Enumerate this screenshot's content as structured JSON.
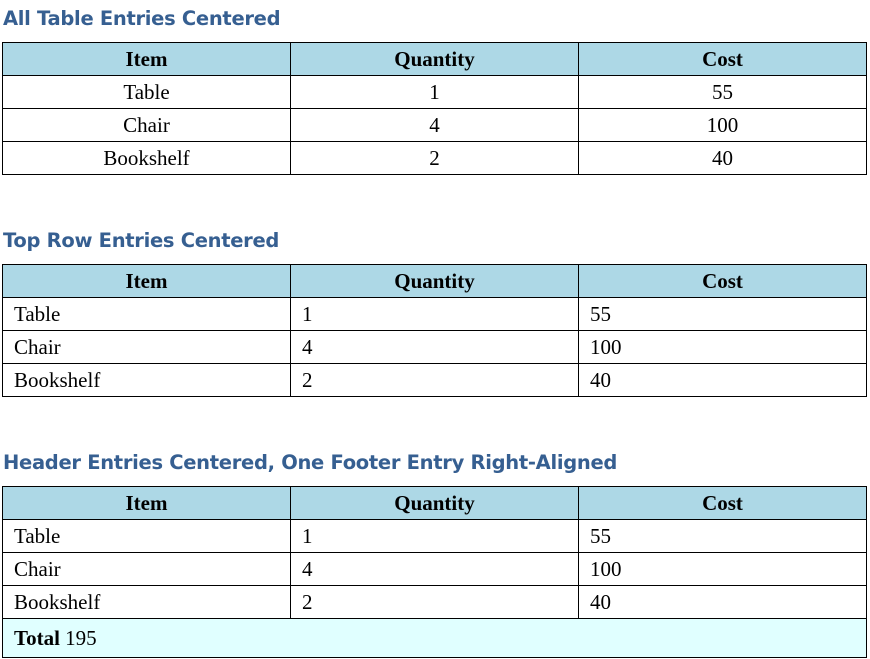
{
  "colors": {
    "title": "#365F91",
    "header_bg": "#ADD8E6",
    "footer_bg": "#E0FFFF"
  },
  "columns": [
    "Item",
    "Quantity",
    "Cost"
  ],
  "rows": [
    [
      "Table",
      "1",
      "55"
    ],
    [
      "Chair",
      "4",
      "100"
    ],
    [
      "Bookshelf",
      "2",
      "40"
    ]
  ],
  "tables": [
    {
      "title": "All Table Entries Centered"
    },
    {
      "title": "Top Row Entries Centered"
    },
    {
      "title": "Header Entries Centered, One Footer Entry Right-Aligned",
      "footer": {
        "label": "Total",
        "value": "195"
      }
    }
  ]
}
